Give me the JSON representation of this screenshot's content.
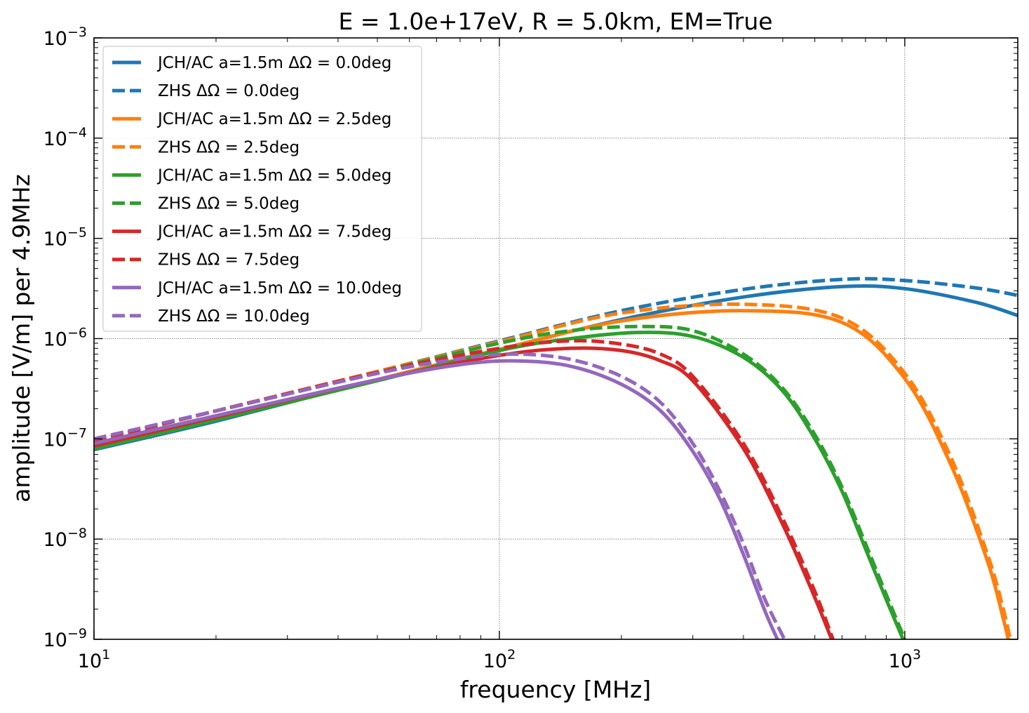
{
  "chart_data": {
    "type": "line",
    "title": "E = 1.0e+17eV, R = 5.0km, EM=True",
    "xlabel": "frequency [MHz]",
    "ylabel": "amplitude [V/m] per 4.9MHz",
    "xscale": "log",
    "yscale": "log",
    "xlim": [
      10,
      1900
    ],
    "ylim": [
      1e-09,
      0.001
    ],
    "grid": true,
    "legend_position": "top-left",
    "x_ticks": [
      {
        "value": 10,
        "base": "10",
        "exp": "1"
      },
      {
        "value": 100,
        "base": "10",
        "exp": "2"
      },
      {
        "value": 1000,
        "base": "10",
        "exp": "3"
      }
    ],
    "y_ticks": [
      {
        "value": 1e-09,
        "base": "10",
        "exp": "−9"
      },
      {
        "value": 1e-08,
        "base": "10",
        "exp": "−8"
      },
      {
        "value": 1e-07,
        "base": "10",
        "exp": "−7"
      },
      {
        "value": 1e-06,
        "base": "10",
        "exp": "−6"
      },
      {
        "value": 1e-05,
        "base": "10",
        "exp": "−5"
      },
      {
        "value": 0.0001,
        "base": "10",
        "exp": "−4"
      },
      {
        "value": 0.001,
        "base": "10",
        "exp": "−3"
      }
    ],
    "series": [
      {
        "name": "JCH/AC a=1.5m ΔΩ = 0.0deg",
        "color": "#1f77b4",
        "dash": "solid",
        "points": [
          [
            10,
            7.8e-08
          ],
          [
            20,
            1.5e-07
          ],
          [
            50,
            3.9e-07
          ],
          [
            100,
            7.8e-07
          ],
          [
            200,
            1.55e-06
          ],
          [
            400,
            2.6e-06
          ],
          [
            700,
            3.3e-06
          ],
          [
            1000,
            3.15e-06
          ],
          [
            1500,
            2.3e-06
          ],
          [
            1900,
            1.7e-06
          ]
        ]
      },
      {
        "name": "ZHS ΔΩ = 0.0deg",
        "color": "#1f77b4",
        "dash": "dashed",
        "points": [
          [
            10,
            9.5e-08
          ],
          [
            20,
            1.9e-07
          ],
          [
            50,
            4.7e-07
          ],
          [
            100,
            9.5e-07
          ],
          [
            200,
            1.9e-06
          ],
          [
            400,
            3.1e-06
          ],
          [
            700,
            3.9e-06
          ],
          [
            1000,
            3.8e-06
          ],
          [
            1500,
            3.2e-06
          ],
          [
            1900,
            2.7e-06
          ]
        ]
      },
      {
        "name": "JCH/AC a=1.5m ΔΩ = 2.5deg",
        "color": "#ff7f0e",
        "dash": "solid",
        "points": [
          [
            10,
            8e-08
          ],
          [
            20,
            1.55e-07
          ],
          [
            50,
            3.9e-07
          ],
          [
            100,
            7.8e-07
          ],
          [
            200,
            1.5e-06
          ],
          [
            400,
            1.9e-06
          ],
          [
            700,
            1.45e-06
          ],
          [
            1000,
            4e-07
          ],
          [
            1300,
            5.5e-08
          ],
          [
            1600,
            6e-09
          ],
          [
            1750,
            1.6e-09
          ],
          [
            1800,
            1e-09
          ]
        ]
      },
      {
        "name": "ZHS ΔΩ = 2.5deg",
        "color": "#ff7f0e",
        "dash": "dashed",
        "points": [
          [
            10,
            9.5e-08
          ],
          [
            20,
            1.9e-07
          ],
          [
            50,
            4.7e-07
          ],
          [
            100,
            9.3e-07
          ],
          [
            200,
            1.8e-06
          ],
          [
            400,
            2.2e-06
          ],
          [
            700,
            1.6e-06
          ],
          [
            1000,
            4.5e-07
          ],
          [
            1300,
            6.5e-08
          ],
          [
            1600,
            7e-09
          ],
          [
            1750,
            2e-09
          ],
          [
            1820,
            1e-09
          ]
        ]
      },
      {
        "name": "JCH/AC a=1.5m ΔΩ = 5.0deg",
        "color": "#2ca02c",
        "dash": "solid",
        "points": [
          [
            10,
            8e-08
          ],
          [
            20,
            1.55e-07
          ],
          [
            50,
            3.8e-07
          ],
          [
            100,
            7.6e-07
          ],
          [
            150,
            1e-06
          ],
          [
            220,
            1.15e-06
          ],
          [
            300,
            1.05e-06
          ],
          [
            400,
            6.5e-07
          ],
          [
            500,
            3e-07
          ],
          [
            600,
            1e-07
          ],
          [
            700,
            3e-08
          ],
          [
            800,
            8e-09
          ],
          [
            900,
            2.5e-09
          ],
          [
            990,
            1e-09
          ]
        ]
      },
      {
        "name": "ZHS ΔΩ = 5.0deg",
        "color": "#2ca02c",
        "dash": "dashed",
        "points": [
          [
            10,
            9.5e-08
          ],
          [
            20,
            1.9e-07
          ],
          [
            50,
            4.6e-07
          ],
          [
            100,
            9e-07
          ],
          [
            150,
            1.2e-06
          ],
          [
            220,
            1.32e-06
          ],
          [
            300,
            1.2e-06
          ],
          [
            400,
            7e-07
          ],
          [
            500,
            3.2e-07
          ],
          [
            600,
            1.1e-07
          ],
          [
            700,
            3.3e-08
          ],
          [
            800,
            9e-09
          ],
          [
            900,
            2.8e-09
          ],
          [
            1000,
            1e-09
          ]
        ]
      },
      {
        "name": "JCH/AC a=1.5m ΔΩ = 7.5deg",
        "color": "#d62728",
        "dash": "solid",
        "points": [
          [
            10,
            8.5e-08
          ],
          [
            20,
            1.65e-07
          ],
          [
            50,
            3.9e-07
          ],
          [
            100,
            6.8e-07
          ],
          [
            150,
            8e-07
          ],
          [
            200,
            7.6e-07
          ],
          [
            250,
            6e-07
          ],
          [
            300,
            3.8e-07
          ],
          [
            400,
            8e-08
          ],
          [
            500,
            1.4e-08
          ],
          [
            600,
            2.6e-09
          ],
          [
            660,
            1e-09
          ]
        ]
      },
      {
        "name": "ZHS ΔΩ = 7.5deg",
        "color": "#d62728",
        "dash": "dashed",
        "points": [
          [
            10,
            9.5e-08
          ],
          [
            20,
            1.9e-07
          ],
          [
            50,
            4.6e-07
          ],
          [
            100,
            8e-07
          ],
          [
            150,
            9.5e-07
          ],
          [
            200,
            8.8e-07
          ],
          [
            250,
            7e-07
          ],
          [
            300,
            4.2e-07
          ],
          [
            400,
            9e-08
          ],
          [
            500,
            1.6e-08
          ],
          [
            600,
            3e-09
          ],
          [
            665,
            1e-09
          ]
        ]
      },
      {
        "name": "JCH/AC a=1.5m ΔΩ = 10.0deg",
        "color": "#9467bd",
        "dash": "solid",
        "points": [
          [
            10,
            9e-08
          ],
          [
            20,
            1.7e-07
          ],
          [
            50,
            3.9e-07
          ],
          [
            80,
            5.5e-07
          ],
          [
            110,
            6e-07
          ],
          [
            150,
            5.3e-07
          ],
          [
            200,
            3.5e-07
          ],
          [
            250,
            1.9e-07
          ],
          [
            300,
            7.5e-08
          ],
          [
            350,
            2.5e-08
          ],
          [
            400,
            7e-09
          ],
          [
            450,
            2e-09
          ],
          [
            485,
            1e-09
          ]
        ]
      },
      {
        "name": "ZHS ΔΩ = 10.0deg",
        "color": "#9467bd",
        "dash": "dashed",
        "points": [
          [
            10,
            1e-07
          ],
          [
            20,
            1.9e-07
          ],
          [
            50,
            4.5e-07
          ],
          [
            80,
            6.3e-07
          ],
          [
            110,
            7e-07
          ],
          [
            150,
            6.2e-07
          ],
          [
            200,
            4.2e-07
          ],
          [
            250,
            2.3e-07
          ],
          [
            300,
            9e-08
          ],
          [
            350,
            3e-08
          ],
          [
            400,
            9e-09
          ],
          [
            450,
            2.6e-09
          ],
          [
            505,
            1e-09
          ]
        ]
      }
    ]
  }
}
